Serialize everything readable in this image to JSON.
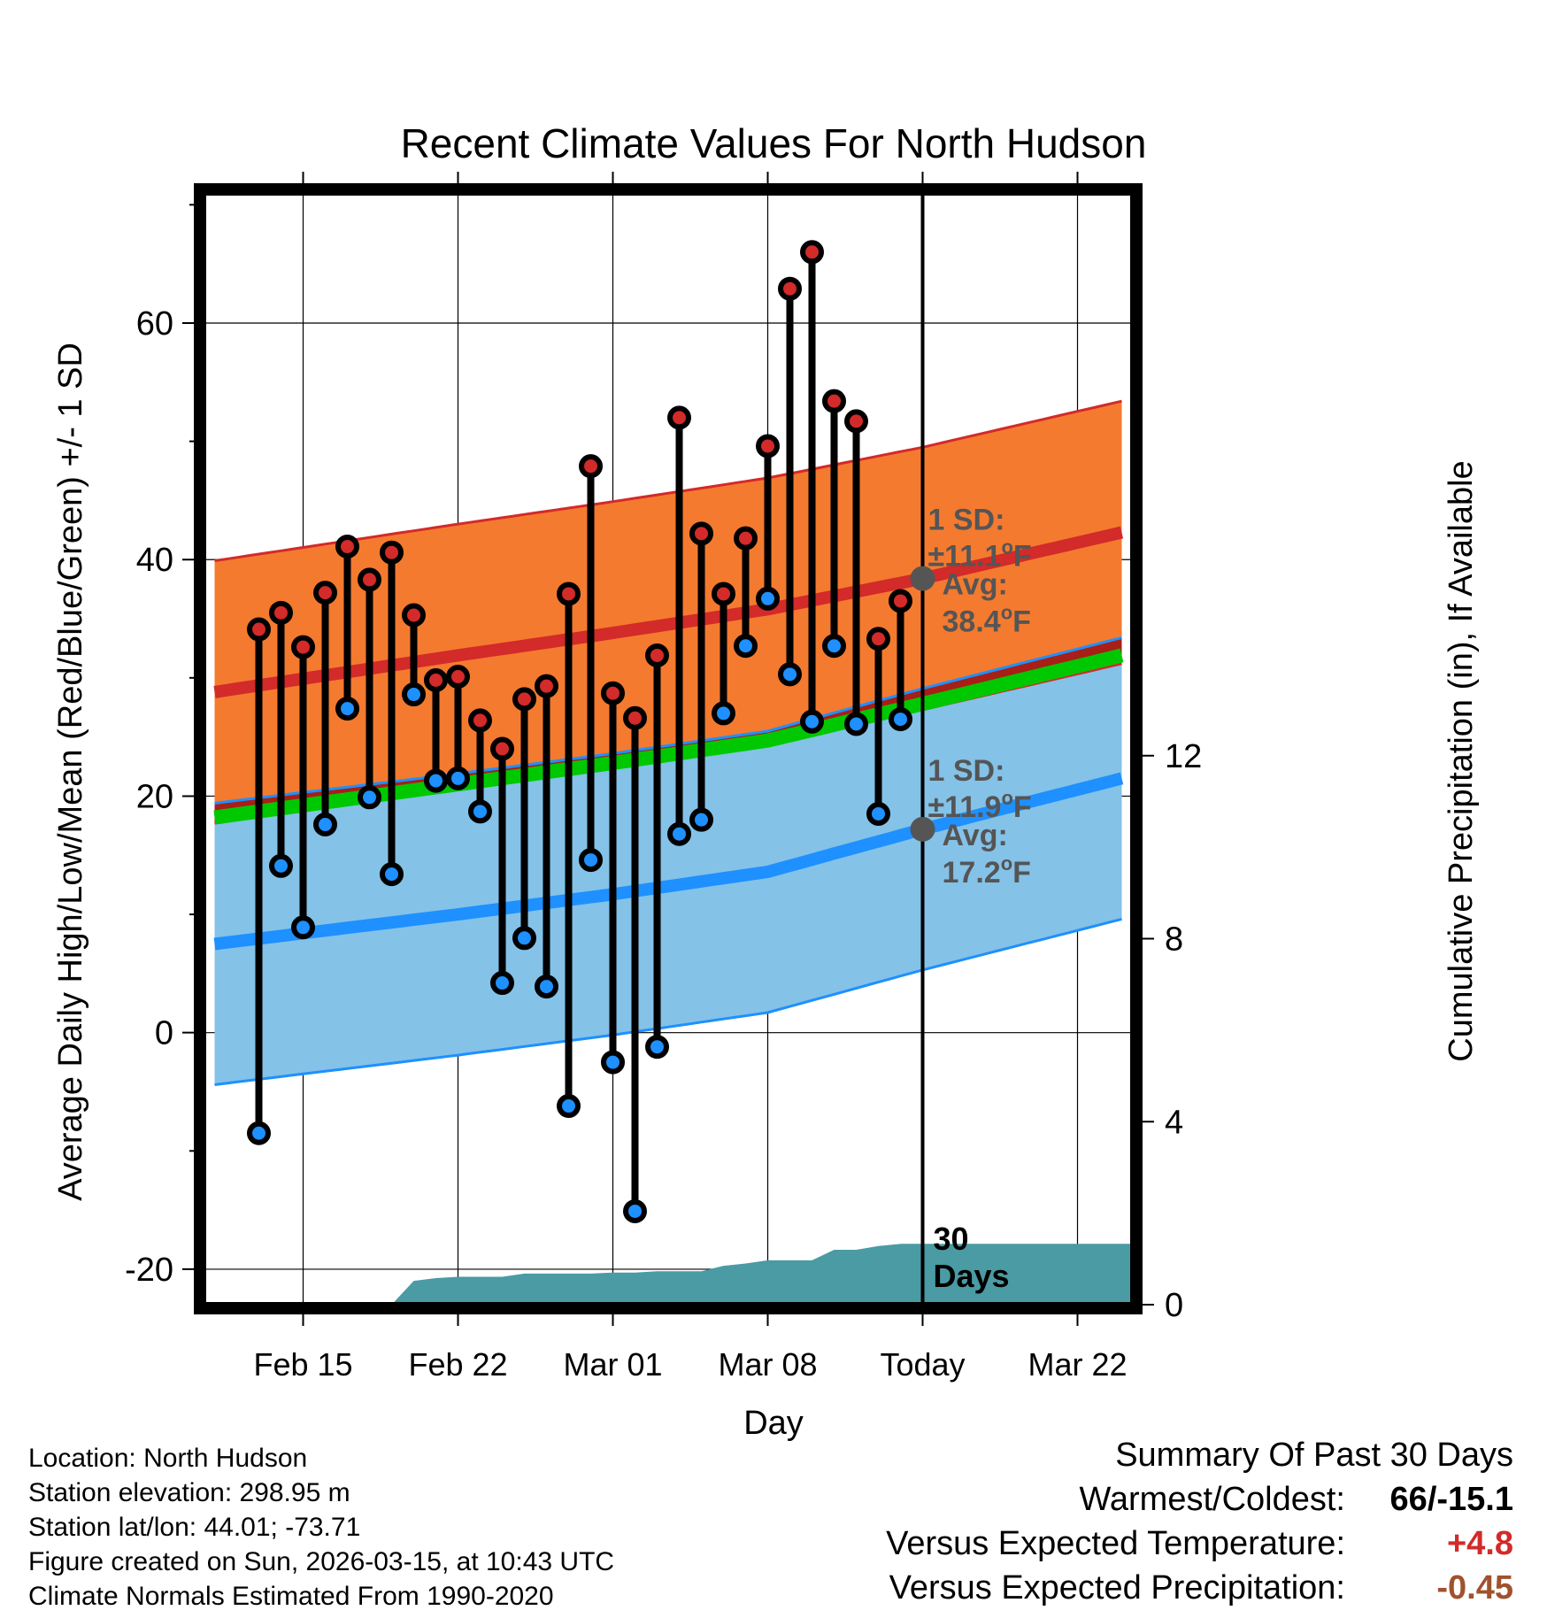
{
  "chart_data": {
    "type": "line",
    "title": "Recent Climate Values For North Hudson",
    "xlabel": "Day",
    "ylabel": "Average Daily High/Low/Mean (Red/Blue/Green) +/- 1 SD",
    "y2label": "Cumulative Precipitation (in), If Available",
    "ylim": [
      -23,
      71
    ],
    "y2lim": [
      0,
      24.3
    ],
    "yticks": [
      "60",
      "40",
      "20",
      "0",
      "-20"
    ],
    "y2ticks": [
      "12",
      "8",
      "4",
      "0"
    ],
    "xticks": [
      "Feb 15",
      "Feb 22",
      "Mar 01",
      "Mar 08",
      "Today",
      "Mar 22"
    ],
    "xlim_days": [
      -32.5,
      9.5
    ],
    "xtick_days": [
      -28,
      -21,
      -14,
      -7,
      0,
      7
    ],
    "observations": {
      "days": [
        -30,
        -29,
        -28,
        -27,
        -26,
        -25,
        -24,
        -23,
        -22,
        -21,
        -20,
        -19,
        -18,
        -17,
        -16,
        -15,
        -14,
        -13,
        -12,
        -11,
        -10,
        -9,
        -8,
        -7,
        -6,
        -5,
        -4,
        -3,
        -2,
        -1
      ],
      "highs": [
        34.1,
        35.5,
        32.6,
        37.2,
        41.1,
        38.3,
        40.6,
        35.3,
        29.8,
        30.1,
        26.4,
        24.0,
        28.2,
        29.3,
        37.1,
        47.9,
        28.7,
        26.6,
        31.9,
        52.0,
        42.2,
        37.1,
        41.8,
        49.6,
        62.9,
        66.0,
        53.4,
        51.7,
        33.3,
        36.5
      ],
      "lows": [
        -8.5,
        14.1,
        8.9,
        17.6,
        27.4,
        19.9,
        13.4,
        28.6,
        21.3,
        21.5,
        18.7,
        4.2,
        8.0,
        3.9,
        -6.2,
        14.6,
        -2.5,
        -15.1,
        -1.2,
        16.8,
        18.0,
        27.0,
        32.7,
        36.7,
        30.3,
        26.3,
        32.7,
        26.1,
        18.5,
        26.5
      ]
    },
    "normal_high": {
      "days": [
        -32,
        -21,
        -14,
        -7,
        0,
        9
      ],
      "mean": [
        28.8,
        31.9,
        33.8,
        35.8,
        38.4,
        42.3
      ],
      "upper": [
        39.9,
        43.0,
        44.9,
        46.9,
        49.5,
        53.4
      ],
      "lower": [
        17.7,
        20.8,
        22.7,
        24.7,
        27.3,
        31.2
      ]
    },
    "normal_low": {
      "days": [
        -32,
        -21,
        -14,
        -7,
        0,
        9
      ],
      "mean": [
        7.5,
        10.0,
        11.7,
        13.6,
        17.2,
        21.5
      ],
      "upper": [
        19.4,
        21.9,
        23.6,
        25.5,
        29.1,
        33.4
      ],
      "lower": [
        -4.4,
        -1.9,
        -0.2,
        1.7,
        5.3,
        9.6
      ]
    },
    "normal_mean": {
      "days": [
        -32,
        -21,
        -14,
        -7,
        0,
        9
      ],
      "mean": [
        18.2,
        21.0,
        22.8,
        24.7,
        27.8,
        31.9
      ]
    },
    "precip_cumulative": {
      "days": [
        -24,
        -23,
        -22,
        -21,
        -20,
        -19,
        -18,
        -16,
        -15,
        -14,
        -13,
        -12,
        -11,
        -10,
        -9,
        -8,
        -7,
        -6,
        -5,
        -4,
        -3,
        -2,
        -1,
        9.5
      ],
      "values": [
        0.0,
        0.52,
        0.58,
        0.61,
        0.61,
        0.61,
        0.68,
        0.68,
        0.68,
        0.7,
        0.7,
        0.73,
        0.73,
        0.73,
        0.85,
        0.9,
        0.97,
        0.97,
        0.97,
        1.2,
        1.2,
        1.28,
        1.33,
        1.33
      ]
    },
    "annotations": {
      "high_sd_label": "1 SD:",
      "high_sd_value": "±11.1",
      "high_avg_label": "Avg:",
      "high_avg_value": "38.4",
      "low_sd_label": "1 SD:",
      "low_sd_value": "±11.9",
      "low_avg_label": "Avg:",
      "low_avg_value": "17.2",
      "unit_o": "o",
      "unit_F": "F",
      "days_number": "30",
      "days_word": "Days"
    },
    "colors": {
      "high_band": "#f47a2f",
      "high_line": "#d32a2a",
      "low_band": "#84c2e8",
      "low_line": "#1e90ff",
      "mean_line": "#00c800",
      "overlap": "#a01515",
      "precip": "#4a9ba3",
      "high_dot": "#d32a2a",
      "low_dot": "#1e90ff",
      "annotation": "#555555"
    }
  },
  "info": {
    "location": "Location: North Hudson",
    "elevation": "Station elevation: 298.95 m",
    "latlon": "Station lat/lon: 44.01; -73.71",
    "created": "Figure created on Sun, 2026-03-15, at 10:43 UTC",
    "normals": "Climate Normals Estimated From 1990-2020"
  },
  "summary": {
    "title": "Summary Of Past 30 Days",
    "warm_cold_label": "Warmest/Coldest:",
    "warm_cold_value": "66/-15.1",
    "temp_label": "Versus Expected Temperature:",
    "temp_value": "+4.8",
    "temp_color": "#d32a2a",
    "precip_label": "Versus Expected Precipitation:",
    "precip_value": "-0.45",
    "precip_color": "#a0522d"
  }
}
